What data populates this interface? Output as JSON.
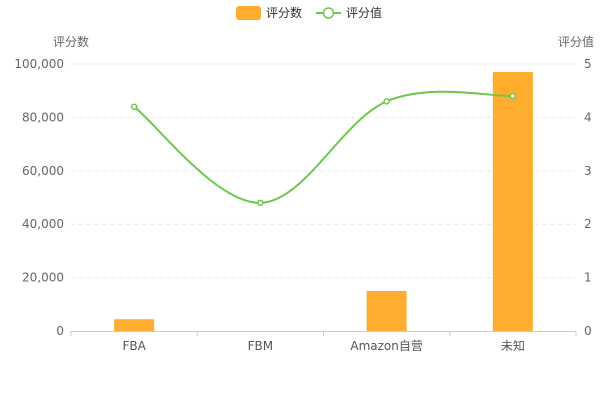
{
  "chart_data": {
    "type": "bar+line",
    "categories": [
      "FBA",
      "FBM",
      "Amazon自营",
      "未知"
    ],
    "series": [
      {
        "name": "评分数",
        "type": "bar",
        "axis": "left",
        "color": "#ffad2e",
        "values": [
          4400,
          0,
          15000,
          97000
        ]
      },
      {
        "name": "评分值",
        "type": "line",
        "axis": "right",
        "color": "#6cc84c",
        "values": [
          4.2,
          2.4,
          4.3,
          4.4
        ]
      }
    ],
    "left_axis": {
      "label": "评分数",
      "min": 0,
      "max": 100000,
      "ticks": [
        "0",
        "20,000",
        "40,000",
        "60,000",
        "80,000",
        "100,000"
      ]
    },
    "right_axis": {
      "label": "评分值",
      "min": 0,
      "max": 5,
      "ticks": [
        "0",
        "1",
        "2",
        "3",
        "4",
        "5"
      ]
    },
    "legend_position": "top-center",
    "grid": "dashed horizontal"
  }
}
